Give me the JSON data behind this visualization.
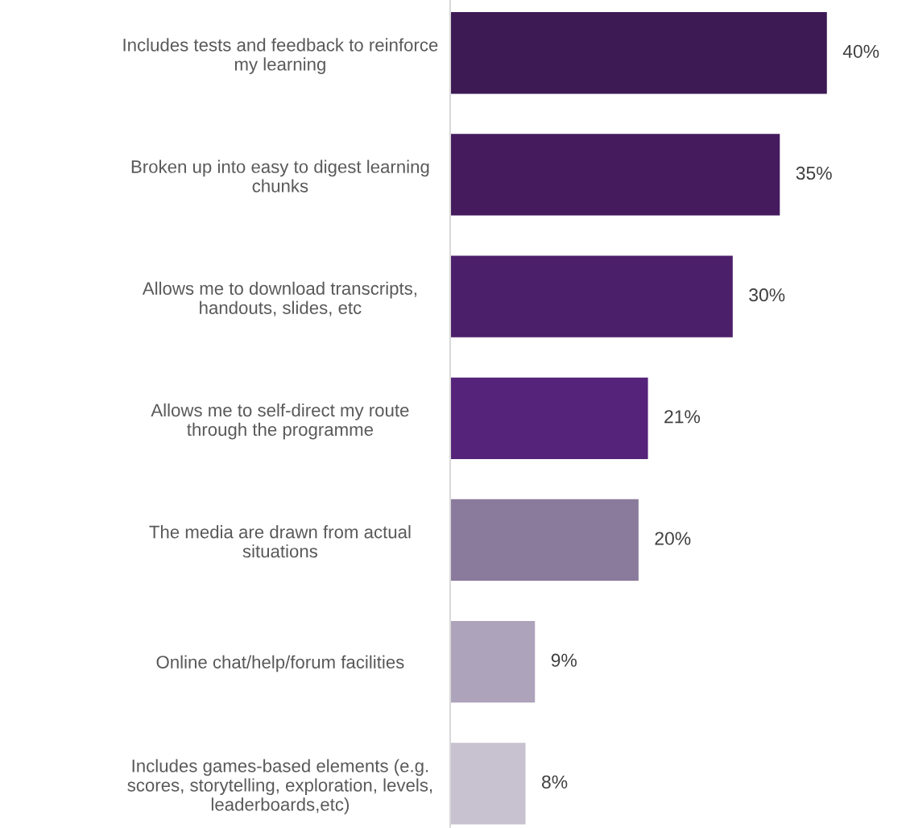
{
  "chart_data": {
    "type": "bar",
    "orientation": "horizontal",
    "categories": [
      "Includes tests and feedback to reinforce\nmy learning",
      "Broken up into easy to digest learning\nchunks",
      "Allows me to download transcripts,\nhandouts, slides, etc",
      "Allows me to self-direct my route\nthrough the programme",
      "The media are drawn from actual\nsituations",
      "Online chat/help/forum facilities",
      "Includes games-based elements (e.g.\nscores, storytelling, exploration, levels,\nleaderboards,etc)"
    ],
    "values": [
      40,
      35,
      30,
      21,
      20,
      9,
      8
    ],
    "colors": [
      "#3d1a54",
      "#451b5e",
      "#4c1f6a",
      "#55237a",
      "#8a7a9b",
      "#ada3ba",
      "#c8c1cf"
    ],
    "value_labels": [
      "40%",
      "35%",
      "30%",
      "21%",
      "20%",
      "9%",
      "8%"
    ],
    "tick_labels": "y",
    "grid": false,
    "legend": false
  }
}
